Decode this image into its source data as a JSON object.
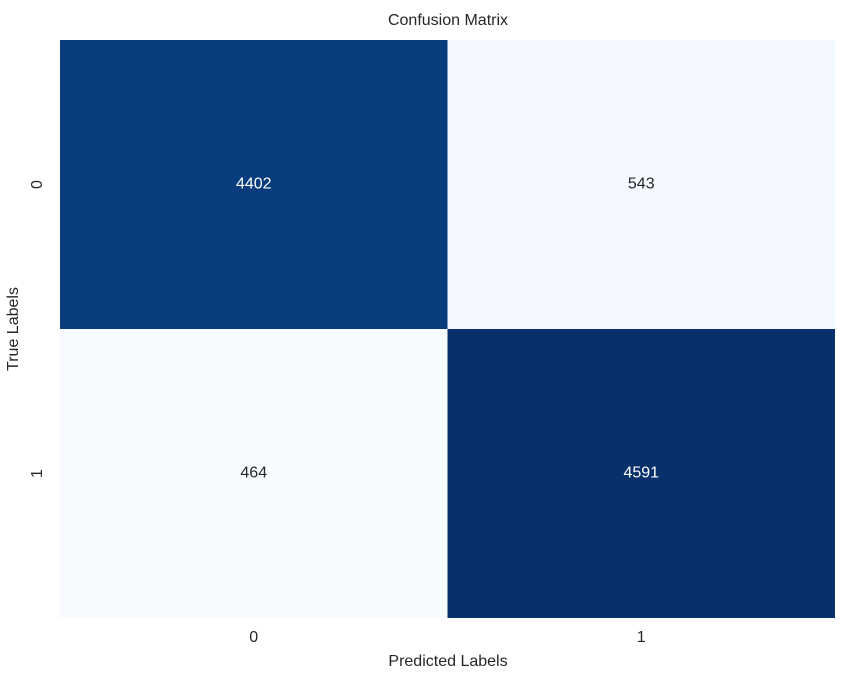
{
  "chart_data": {
    "type": "heatmap",
    "title": "Confusion Matrix",
    "x_label": "Predicted Labels",
    "y_label": "True Labels",
    "x_categories": [
      "0",
      "1"
    ],
    "y_categories": [
      "0",
      "1"
    ],
    "values": [
      [
        4402,
        543
      ],
      [
        464,
        4591
      ]
    ],
    "colormap": [
      "#f7fbff",
      "#deebf7",
      "#c6dbef",
      "#9ecae1",
      "#6baed6",
      "#4292c6",
      "#2171b5",
      "#08519c",
      "#08306b"
    ]
  }
}
